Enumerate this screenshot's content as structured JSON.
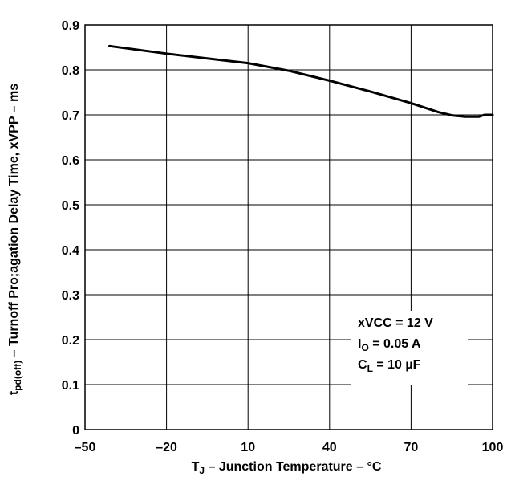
{
  "chart_data": {
    "type": "line",
    "title": "",
    "xlabel": {
      "main": "T",
      "sub": "J",
      "rest": " – Junction Temperature – °C"
    },
    "ylabel": {
      "main": "t",
      "sub": "pd(off)",
      "rest": "  – Turnoff Pro;agation Delay Time, xVPP – ms"
    },
    "xlim": [
      -50,
      100
    ],
    "ylim": [
      0,
      0.9
    ],
    "x_ticks": [
      -50,
      -20,
      10,
      40,
      70,
      100
    ],
    "x_tick_labels": [
      "–50",
      "–20",
      "10",
      "40",
      "70",
      "100"
    ],
    "y_ticks": [
      0,
      0.1,
      0.2,
      0.3,
      0.4,
      0.5,
      0.6,
      0.7,
      0.8,
      0.9
    ],
    "y_tick_labels": [
      "0",
      "0.1",
      "0.2",
      "0.3",
      "0.4",
      "0.5",
      "0.6",
      "0.7",
      "0.8",
      "0.9"
    ],
    "grid": true,
    "series": [
      {
        "name": "",
        "color": "#000000",
        "x": [
          -41,
          -20,
          0,
          10,
          25,
          40,
          55,
          70,
          80,
          85,
          90,
          95,
          97,
          100
        ],
        "y": [
          0.853,
          0.836,
          0.822,
          0.815,
          0.798,
          0.776,
          0.752,
          0.726,
          0.706,
          0.699,
          0.696,
          0.696,
          0.7,
          0.7
        ]
      }
    ],
    "annotations": [
      {
        "main": "xVCC = 12 V",
        "sub": "",
        "rest": ""
      },
      {
        "main": "I",
        "sub": "O",
        "rest": " = 0.05 A"
      },
      {
        "main": "C",
        "sub": "L",
        "rest": " = 10 µF"
      }
    ]
  }
}
